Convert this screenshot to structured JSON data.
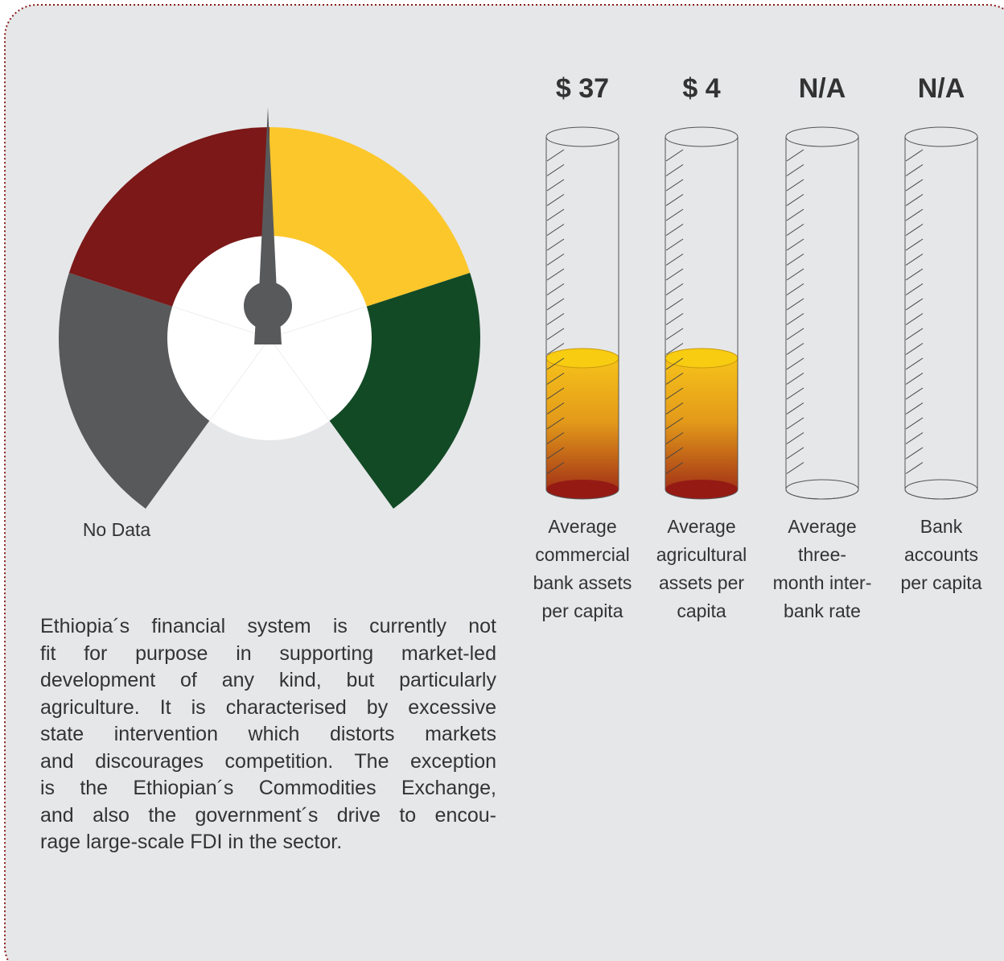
{
  "gauge": {
    "label": "No Data"
  },
  "cylinders": [
    {
      "value": "$ 37",
      "label": [
        "Average",
        "commercial",
        "bank assets",
        "per capita"
      ]
    },
    {
      "value": "$ 4",
      "label": [
        "Average",
        "agricultural",
        "assets per",
        "capita"
      ]
    },
    {
      "value": "N/A",
      "label": [
        "Average",
        "three-",
        "month inter-",
        "bank rate"
      ]
    },
    {
      "value": "N/A",
      "label": [
        "Bank",
        "accounts",
        "per capita"
      ]
    }
  ],
  "paragraph": [
    "Ethiopia´s financial system is currently not",
    "fit for purpose in supporting market-led",
    "development of any kind, but particularly",
    "agriculture. It is characterised by excessive",
    "state intervention which distorts markets",
    "and discourages competition. The exception",
    "is the Ethiopian´s Commodities Exchange,",
    "and also the government´s drive to encou-",
    "rage large-scale FDI in the sector."
  ]
}
